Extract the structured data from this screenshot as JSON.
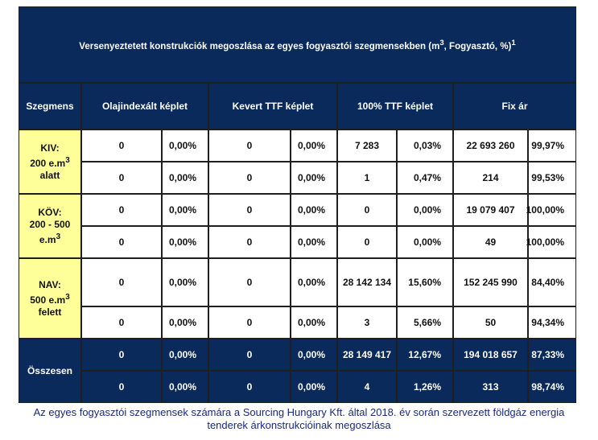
{
  "title": {
    "text": "Versenyeztetett konstrukciók megoszlása az egyes fogyasztói szegmensekben (m",
    "sup": "3",
    "text_after": ", Fogyasztó, %)",
    "sup2": "1"
  },
  "columns": [
    "Szegmens",
    "Olajindexált képlet",
    "Kevert TTF képlet",
    "100% TTF képlet",
    "Fix ár"
  ],
  "segments": [
    {
      "line1": "KIV:",
      "line2": "200 e.m",
      "sup": "3",
      "line3": "alatt"
    },
    {
      "line1": "KÖV:",
      "line2": "200 - 500",
      "line3": "e.m",
      "sup": "3"
    },
    {
      "line1": "NAV:",
      "line2": "500 e.m",
      "sup": "3",
      "line3": "felett"
    }
  ],
  "total_label": "Összesen",
  "rows": [
    [
      "0",
      "0,00%",
      "0",
      "0,00%",
      "7 283",
      "0,03%",
      "22 693 260",
      "99,97%"
    ],
    [
      "0",
      "0,00%",
      "0",
      "0,00%",
      "1",
      "0,47%",
      "214",
      "99,53%"
    ],
    [
      "0",
      "0,00%",
      "0",
      "0,00%",
      "0",
      "0,00%",
      "19 079 407",
      "100,00%"
    ],
    [
      "0",
      "0,00%",
      "0",
      "0,00%",
      "0",
      "0,00%",
      "49",
      "100,00%"
    ],
    [
      "0",
      "0,00%",
      "0",
      "0,00%",
      "28 142 134",
      "15,60%",
      "152 245 990",
      "84,40%"
    ],
    [
      "0",
      "0,00%",
      "0",
      "0,00%",
      "3",
      "5,66%",
      "50",
      "94,34%"
    ],
    [
      "0",
      "0,00%",
      "0",
      "0,00%",
      "28 149 417",
      "12,67%",
      "194 018 657",
      "87,33%"
    ],
    [
      "0",
      "0,00%",
      "0",
      "0,00%",
      "4",
      "1,26%",
      "313",
      "98,74%"
    ]
  ],
  "caption": {
    "line1": "Az egyes fogyasztói szegmensek számára a Sourcing Hungary Kft. által 2018. év során szervezett földgáz energia",
    "line2": "tenderek árkonstrukcióinak megoszlása"
  },
  "colors": {
    "header_bg": "#0b2a5c",
    "segment_bg": "#ffff99",
    "caption": "#1a2a7a"
  }
}
